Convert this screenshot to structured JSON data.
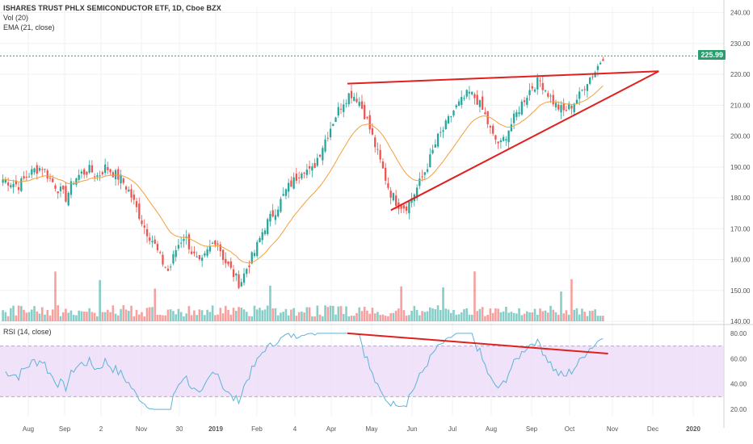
{
  "header": {
    "title": "ISHARES TRUST PHLX SEMICONDUCTOR ETF, 1D, Cboe BZX",
    "volume_label": "Vol (20)",
    "ema_label": "EMA (21, close)"
  },
  "rsi_panel": {
    "label": "RSI (14, close)"
  },
  "last_price": {
    "label": "225.99",
    "value": 225.99,
    "color": "#2a9d6f"
  },
  "chart_data": {
    "type": "line",
    "price_axis": {
      "range": [
        140,
        242
      ],
      "ticks": [
        "240.00",
        "230.00",
        "220.00",
        "210.00",
        "200.00",
        "190.00",
        "180.00",
        "170.00",
        "160.00",
        "150.00",
        "140.00"
      ]
    },
    "rsi_axis": {
      "range": [
        15,
        85
      ],
      "ticks": [
        "80.00",
        "60.00",
        "40.00",
        "20.00"
      ],
      "band": [
        30,
        70
      ]
    },
    "x_labels": [
      "Aug",
      "Sep",
      "2",
      "Nov",
      "30",
      "2019",
      "Feb",
      "4",
      "Apr",
      "May",
      "Jun",
      "Jul",
      "Aug",
      "Sep",
      "Oct",
      "Nov",
      "Dec",
      "2020"
    ],
    "colors": {
      "up": "#26a69a",
      "down": "#ef5350",
      "ema": "#f59f3a",
      "rsi": "#5eb4d6",
      "rsi_band": "#ead6f7",
      "trendline": "#e0201e"
    },
    "price_closes_sample": [
      186,
      185,
      184,
      187,
      189,
      190,
      186,
      183,
      180,
      186,
      188,
      189,
      187,
      190,
      188,
      186,
      182,
      176,
      170,
      166,
      160,
      156,
      164,
      168,
      162,
      158,
      163,
      167,
      160,
      156,
      152,
      158,
      163,
      170,
      174,
      178,
      183,
      186,
      190,
      188,
      194,
      200,
      206,
      211,
      214,
      212,
      206,
      198,
      190,
      182,
      178,
      177,
      181,
      186,
      192,
      199,
      203,
      208,
      211,
      214,
      212,
      207,
      200,
      197,
      202,
      207,
      212,
      216,
      218,
      214,
      210,
      208,
      210,
      213,
      218,
      221,
      226
    ],
    "trendlines": [
      {
        "name": "",
        "points": [
          [
            0.48,
            217
          ],
          [
            0.91,
            221
          ]
        ]
      },
      {
        "name": "",
        "points": [
          [
            0.54,
            176
          ],
          [
            0.91,
            221
          ]
        ]
      }
    ],
    "rsi_divergence": {
      "points": [
        [
          0.48,
          80
        ],
        [
          0.84,
          64
        ]
      ]
    }
  }
}
